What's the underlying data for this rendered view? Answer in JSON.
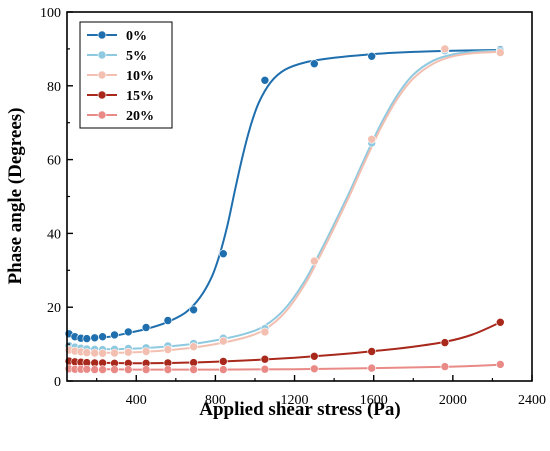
{
  "chart_data": {
    "type": "line",
    "xlabel": "Applied shear stress (Pa)",
    "ylabel": "Phase angle (Degrees)",
    "xlim": [
      50,
      2400
    ],
    "ylim": [
      0,
      100
    ],
    "xticks": [
      400,
      800,
      1200,
      1600,
      2000,
      2400
    ],
    "yticks": [
      0,
      20,
      40,
      60,
      80,
      100
    ],
    "legend_position": "top-left",
    "grid": false,
    "series": [
      {
        "name": "0%",
        "color": "#1f6fae",
        "points": [
          [
            60,
            12.8
          ],
          [
            90,
            12.0
          ],
          [
            120,
            11.6
          ],
          [
            150,
            11.5
          ],
          [
            190,
            11.7
          ],
          [
            230,
            12.0
          ],
          [
            290,
            12.5
          ],
          [
            360,
            13.3
          ],
          [
            450,
            14.5
          ],
          [
            560,
            16.4
          ],
          [
            690,
            19.3
          ],
          [
            840,
            34.5
          ],
          [
            1050,
            81.5
          ],
          [
            1300,
            86.0
          ],
          [
            1590,
            88.0
          ],
          [
            1960,
            89.8
          ],
          [
            2240,
            89.8
          ]
        ],
        "curve": [
          [
            60,
            12.6
          ],
          [
            150,
            11.6
          ],
          [
            250,
            11.9
          ],
          [
            350,
            12.9
          ],
          [
            450,
            14.1
          ],
          [
            550,
            15.8
          ],
          [
            650,
            18.6
          ],
          [
            720,
            22.5
          ],
          [
            780,
            28.0
          ],
          [
            820,
            34.0
          ],
          [
            860,
            42.0
          ],
          [
            900,
            52.0
          ],
          [
            940,
            61.5
          ],
          [
            980,
            69.5
          ],
          [
            1020,
            75.5
          ],
          [
            1080,
            81.0
          ],
          [
            1150,
            84.3
          ],
          [
            1250,
            86.3
          ],
          [
            1400,
            87.6
          ],
          [
            1600,
            88.6
          ],
          [
            1800,
            89.2
          ],
          [
            2000,
            89.5
          ],
          [
            2240,
            89.7
          ]
        ]
      },
      {
        "name": "5%",
        "color": "#8ec9e0",
        "points": [
          [
            60,
            9.6
          ],
          [
            90,
            9.2
          ],
          [
            120,
            8.9
          ],
          [
            150,
            8.7
          ],
          [
            190,
            8.6
          ],
          [
            230,
            8.5
          ],
          [
            290,
            8.6
          ],
          [
            360,
            8.8
          ],
          [
            450,
            9.0
          ],
          [
            560,
            9.5
          ],
          [
            690,
            10.2
          ],
          [
            840,
            11.6
          ],
          [
            1050,
            14.2
          ],
          [
            1300,
            32.5
          ],
          [
            1590,
            64.5
          ],
          [
            1960,
            89.5
          ],
          [
            2240,
            89.5
          ]
        ],
        "curve": [
          [
            60,
            9.5
          ],
          [
            200,
            8.7
          ],
          [
            350,
            8.7
          ],
          [
            500,
            9.1
          ],
          [
            650,
            9.8
          ],
          [
            800,
            11.0
          ],
          [
            950,
            12.8
          ],
          [
            1050,
            15.0
          ],
          [
            1150,
            19.5
          ],
          [
            1250,
            27.0
          ],
          [
            1330,
            35.0
          ],
          [
            1400,
            42.5
          ],
          [
            1480,
            51.5
          ],
          [
            1560,
            61.0
          ],
          [
            1640,
            70.0
          ],
          [
            1720,
            77.5
          ],
          [
            1800,
            83.0
          ],
          [
            1900,
            86.8
          ],
          [
            2000,
            88.5
          ],
          [
            2100,
            89.2
          ],
          [
            2240,
            89.5
          ]
        ]
      },
      {
        "name": "10%",
        "color": "#f2bfb0",
        "points": [
          [
            60,
            8.4
          ],
          [
            90,
            8.1
          ],
          [
            120,
            7.9
          ],
          [
            150,
            7.7
          ],
          [
            190,
            7.6
          ],
          [
            230,
            7.5
          ],
          [
            290,
            7.6
          ],
          [
            360,
            7.8
          ],
          [
            450,
            8.0
          ],
          [
            560,
            8.5
          ],
          [
            690,
            9.3
          ],
          [
            840,
            10.8
          ],
          [
            1050,
            13.3
          ],
          [
            1300,
            32.5
          ],
          [
            1590,
            65.5
          ],
          [
            1960,
            90.0
          ],
          [
            2240,
            89.0
          ]
        ],
        "curve": [
          [
            60,
            8.3
          ],
          [
            200,
            7.7
          ],
          [
            350,
            7.7
          ],
          [
            500,
            8.1
          ],
          [
            650,
            8.8
          ],
          [
            800,
            10.0
          ],
          [
            950,
            11.8
          ],
          [
            1050,
            14.0
          ],
          [
            1150,
            18.5
          ],
          [
            1250,
            26.0
          ],
          [
            1330,
            34.0
          ],
          [
            1400,
            41.5
          ],
          [
            1480,
            50.5
          ],
          [
            1560,
            60.0
          ],
          [
            1640,
            69.0
          ],
          [
            1720,
            76.5
          ],
          [
            1800,
            82.0
          ],
          [
            1900,
            86.0
          ],
          [
            2000,
            88.0
          ],
          [
            2100,
            88.8
          ],
          [
            2240,
            89.2
          ]
        ]
      },
      {
        "name": "15%",
        "color": "#a8281b",
        "points": [
          [
            60,
            5.4
          ],
          [
            90,
            5.2
          ],
          [
            120,
            5.1
          ],
          [
            150,
            5.0
          ],
          [
            190,
            4.9
          ],
          [
            230,
            4.9
          ],
          [
            290,
            4.8
          ],
          [
            360,
            4.8
          ],
          [
            450,
            4.8
          ],
          [
            560,
            4.9
          ],
          [
            690,
            5.0
          ],
          [
            840,
            5.3
          ],
          [
            1050,
            5.9
          ],
          [
            1300,
            6.7
          ],
          [
            1590,
            8.0
          ],
          [
            1960,
            10.4
          ],
          [
            2240,
            15.9
          ]
        ],
        "curve": [
          [
            60,
            5.4
          ],
          [
            200,
            5.0
          ],
          [
            400,
            4.8
          ],
          [
            600,
            4.9
          ],
          [
            800,
            5.2
          ],
          [
            1000,
            5.7
          ],
          [
            1200,
            6.3
          ],
          [
            1400,
            7.1
          ],
          [
            1600,
            8.1
          ],
          [
            1800,
            9.3
          ],
          [
            1960,
            10.6
          ],
          [
            2100,
            12.6
          ],
          [
            2240,
            15.9
          ]
        ]
      },
      {
        "name": "20%",
        "color": "#e98a86",
        "points": [
          [
            60,
            3.3
          ],
          [
            90,
            3.2
          ],
          [
            120,
            3.2
          ],
          [
            150,
            3.2
          ],
          [
            190,
            3.1
          ],
          [
            230,
            3.1
          ],
          [
            290,
            3.1
          ],
          [
            360,
            3.1
          ],
          [
            450,
            3.1
          ],
          [
            560,
            3.1
          ],
          [
            690,
            3.1
          ],
          [
            840,
            3.1
          ],
          [
            1050,
            3.2
          ],
          [
            1300,
            3.3
          ],
          [
            1590,
            3.5
          ],
          [
            1960,
            3.9
          ],
          [
            2240,
            4.5
          ]
        ],
        "curve": [
          [
            60,
            3.3
          ],
          [
            400,
            3.1
          ],
          [
            800,
            3.1
          ],
          [
            1200,
            3.2
          ],
          [
            1600,
            3.5
          ],
          [
            2000,
            3.9
          ],
          [
            2240,
            4.4
          ]
        ]
      }
    ]
  }
}
